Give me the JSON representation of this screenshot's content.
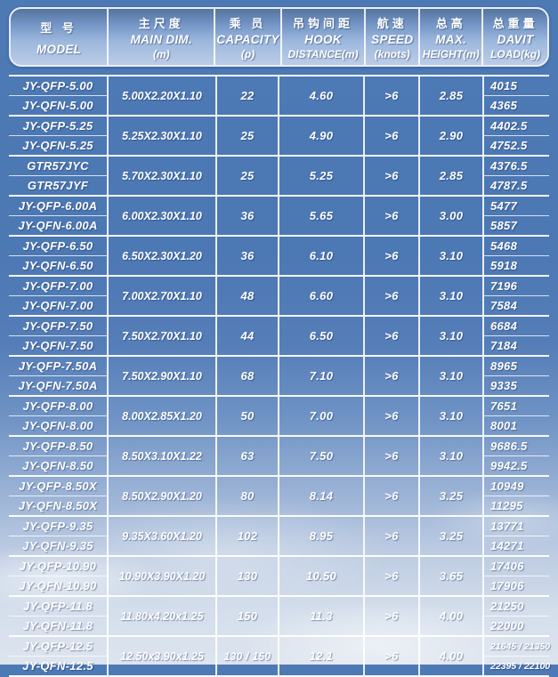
{
  "colors": {
    "table_blue": "#4d79b5",
    "grid_line": "#ffffff",
    "text": "#ffffff",
    "header_gradient_top": "#54749f",
    "header_gradient_bottom": "#bccce7",
    "sky_bottom": "#dde4ee"
  },
  "table": {
    "headers": [
      {
        "zh": "型 号",
        "en": "MODEL",
        "unit": ""
      },
      {
        "zh": "主尺度",
        "en": "MAIN DIM.",
        "unit": "(m)"
      },
      {
        "zh": "乘 员",
        "en": "CAPACITY",
        "unit": "(p)"
      },
      {
        "zh": "吊钩间距",
        "en": "HOOK",
        "unit": "DISTANCE(m)"
      },
      {
        "zh": "航速",
        "en": "SPEED",
        "unit": "(knots)"
      },
      {
        "zh": "总高",
        "en": "MAX.",
        "unit": "HEIGHT(m)"
      },
      {
        "zh": "总重量",
        "en": "DAVIT",
        "unit": "LOAD(kg)"
      }
    ],
    "groups": [
      {
        "models": [
          "JY-QFP-5.00",
          "JY-QFN-5.00"
        ],
        "main_dim": "5.00X2.20X1.10",
        "capacity": "22",
        "hook": "4.60",
        "speed": ">6",
        "height": "2.85",
        "loads": [
          "4015",
          "4365"
        ]
      },
      {
        "models": [
          "JY-QFP-5.25",
          "JY-QFN-5.25"
        ],
        "main_dim": "5.25X2.30X1.10",
        "capacity": "25",
        "hook": "4.90",
        "speed": ">6",
        "height": "2.90",
        "loads": [
          "4402.5",
          "4752.5"
        ]
      },
      {
        "models": [
          "GTR57JYC",
          "GTR57JYF"
        ],
        "main_dim": "5.70X2.30X1.10",
        "capacity": "25",
        "hook": "5.25",
        "speed": ">6",
        "height": "2.85",
        "loads": [
          "4376.5",
          "4787.5"
        ]
      },
      {
        "models": [
          "JY-QFP-6.00A",
          "JY-QFN-6.00A"
        ],
        "main_dim": "6.00X2.30X1.10",
        "capacity": "36",
        "hook": "5.65",
        "speed": ">6",
        "height": "3.00",
        "loads": [
          "5477",
          "5857"
        ]
      },
      {
        "models": [
          "JY-QFP-6.50",
          "JY-QFN-6.50"
        ],
        "main_dim": "6.50X2.30X1.20",
        "capacity": "36",
        "hook": "6.10",
        "speed": ">6",
        "height": "3.10",
        "loads": [
          "5468",
          "5918"
        ]
      },
      {
        "models": [
          "JY-QFP-7.00",
          "JY-QFN-7.00"
        ],
        "main_dim": "7.00X2.70X1.10",
        "capacity": "48",
        "hook": "6.60",
        "speed": ">6",
        "height": "3.10",
        "loads": [
          "7196",
          "7584"
        ]
      },
      {
        "models": [
          "JY-QFP-7.50",
          "JY-QFN-7.50"
        ],
        "main_dim": "7.50X2.70X1.10",
        "capacity": "44",
        "hook": "6.50",
        "speed": ">6",
        "height": "3.10",
        "loads": [
          "6684",
          "7184"
        ]
      },
      {
        "models": [
          "JY-QFP-7.50A",
          "JY-QFN-7.50A"
        ],
        "main_dim": "7.50X2.90X1.10",
        "capacity": "68",
        "hook": "7.10",
        "speed": ">6",
        "height": "3.10",
        "loads": [
          "8965",
          "9335"
        ]
      },
      {
        "models": [
          "JY-QFP-8.00",
          "JY-QFN-8.00"
        ],
        "main_dim": "8.00X2.85X1.20",
        "capacity": "50",
        "hook": "7.00",
        "speed": ">6",
        "height": "3.10",
        "loads": [
          "7651",
          "8001"
        ]
      },
      {
        "models": [
          "JY-QFP-8.50",
          "JY-QFN-8.50"
        ],
        "main_dim": "8.50X3.10X1.22",
        "capacity": "63",
        "hook": "7.50",
        "speed": ">6",
        "height": "3.10",
        "loads": [
          "9686.5",
          "9942.5"
        ]
      },
      {
        "models": [
          "JY-QFP-8.50X",
          "JY-QFN-8.50X"
        ],
        "main_dim": "8.50X2.90X1.20",
        "capacity": "80",
        "hook": "8.14",
        "speed": ">6",
        "height": "3.25",
        "loads": [
          "10949",
          "11295"
        ]
      },
      {
        "models": [
          "JY-QFP-9.35",
          "JY-QFN-9.35"
        ],
        "main_dim": "9.35X3.60X1.20",
        "capacity": "102",
        "hook": "8.95",
        "speed": ">6",
        "height": "3.25",
        "loads": [
          "13771",
          "14271"
        ]
      },
      {
        "models": [
          "JY-QFP-10.90",
          "JY-QFN-10.90"
        ],
        "main_dim": "10.90X3.90X1.20",
        "capacity": "130",
        "hook": "10.50",
        "speed": ">6",
        "height": "3.65",
        "loads": [
          "17406",
          "17906"
        ]
      },
      {
        "models": [
          "JY-QFP-11.8",
          "JY-QFN-11.8"
        ],
        "main_dim": "11.80x4.20x1.25",
        "capacity": "150",
        "hook": "11.3",
        "speed": ">6",
        "height": "4.00",
        "loads": [
          "21250",
          "22000"
        ]
      },
      {
        "models": [
          "JY-QFP-12.5",
          "JY-QFN-12.5"
        ],
        "main_dim": "12.50x3.90x1.25",
        "capacity": "130 / 150",
        "hook": "12.1",
        "speed": ">6",
        "height": "4.00",
        "loads": [
          "21645 / 21350",
          "22395 / 22100"
        ]
      }
    ]
  }
}
